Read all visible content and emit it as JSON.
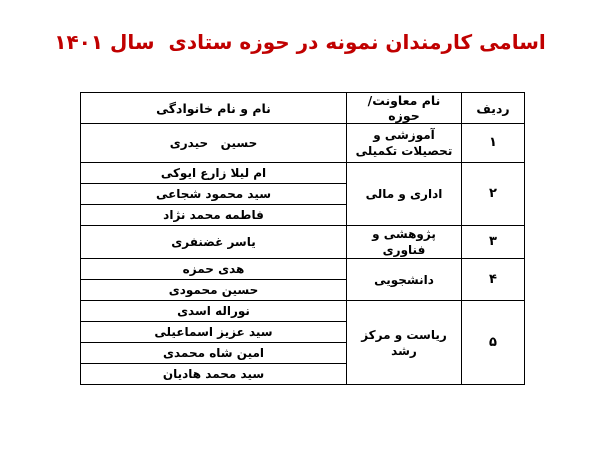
{
  "page": {
    "background_color": "#ffffff",
    "text_color": "#000000",
    "border_color": "#000000"
  },
  "title": {
    "text": "اسامی کارمندان نمونه در حوزه ستادی  سال ۱۴۰۱",
    "color": "#C00000"
  },
  "table": {
    "headers": {
      "radif": "ردیف",
      "hoze": "نام معاونت/ حوزه",
      "name": "نام و نام خانوادگی"
    },
    "groups": [
      {
        "radif": "۱",
        "hoze": "آموزشی و تحصیلات تکمیلی",
        "names": [
          "حسین   حیدری"
        ]
      },
      {
        "radif": "۲",
        "hoze": "اداری و مالی",
        "names": [
          "ام لیلا زارع ایوکی",
          "سید محمود شجاعی",
          "فاطمه محمد نژاد"
        ]
      },
      {
        "radif": "۳",
        "hoze": "پژوهشی و فناوری",
        "names": [
          "یاسر غضنفری"
        ]
      },
      {
        "radif": "۴",
        "hoze": "دانشجویی",
        "names": [
          "هدی حمزه",
          "حسین محمودی"
        ]
      },
      {
        "radif": "۵",
        "hoze": "ریاست و مرکز رشد",
        "names": [
          "نوراله اسدی",
          "سید عزیز اسماعیلی",
          "امین شاه محمدی",
          "سید محمد هادیان"
        ]
      }
    ]
  }
}
